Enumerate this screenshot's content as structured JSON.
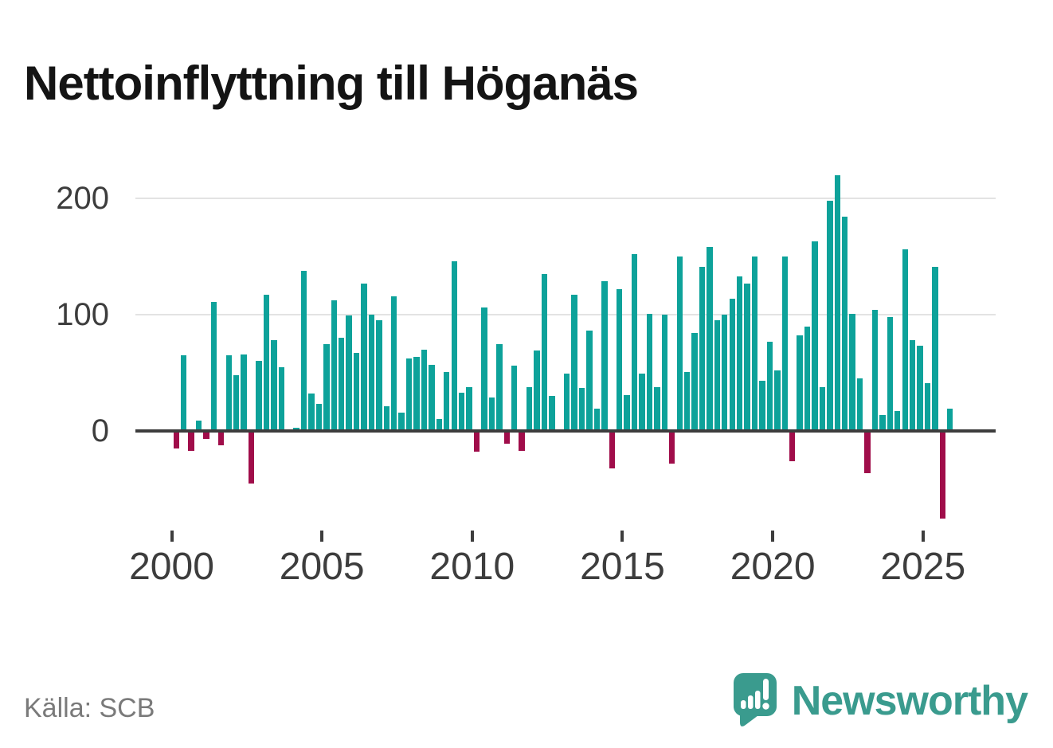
{
  "title": "Nettoinflyttning till Höganäs",
  "source": "Källa: SCB",
  "brand": {
    "name": "Newsworthy",
    "icon": "newsworthy-speech-bubble-bar-chart-icon"
  },
  "colors": {
    "background": "#ffffff",
    "positive_bar": "#0da29a",
    "negative_bar": "#a00d4a",
    "axis": "#3d3d3d",
    "gridline": "#e3e3e3",
    "tick_label": "#3d3d3d",
    "title_text": "#141414",
    "source_text": "#7a7a7a",
    "brand_teal": "#3a9b8e"
  },
  "chart_data": {
    "type": "bar",
    "title": "Nettoinflyttning till Höganäs",
    "frequency": "quarterly",
    "start_period": "2000Q1",
    "end_period": "2025Q4",
    "grid": "horizontal",
    "legend": "none",
    "xlabel": "",
    "ylabel": "",
    "ylim": [
      -85,
      235
    ],
    "y_ticks": [
      0,
      100,
      200
    ],
    "y_tick_labels": [
      "0",
      "100",
      "200"
    ],
    "x_tick_labels": [
      "2000",
      "2005",
      "2010",
      "2015",
      "2020",
      "2025"
    ],
    "values": [
      -15,
      65,
      -17,
      9,
      -7,
      111,
      -12,
      65,
      48,
      66,
      -45,
      60,
      117,
      78,
      55,
      0,
      3,
      138,
      32,
      23,
      75,
      112,
      80,
      99,
      67,
      127,
      100,
      95,
      21,
      116,
      16,
      62,
      64,
      70,
      57,
      10,
      51,
      146,
      33,
      38,
      -18,
      106,
      29,
      75,
      -11,
      56,
      -17,
      38,
      69,
      135,
      30,
      0,
      49,
      117,
      37,
      86,
      19,
      129,
      -32,
      122,
      31,
      152,
      49,
      101,
      38,
      100,
      -28,
      150,
      51,
      84,
      141,
      158,
      95,
      100,
      114,
      133,
      127,
      150,
      43,
      77,
      52,
      150,
      -26,
      82,
      90,
      163,
      38,
      198,
      220,
      184,
      101,
      45,
      -36,
      104,
      14,
      98,
      17,
      156,
      78,
      73,
      41,
      141,
      -75,
      19
    ]
  }
}
